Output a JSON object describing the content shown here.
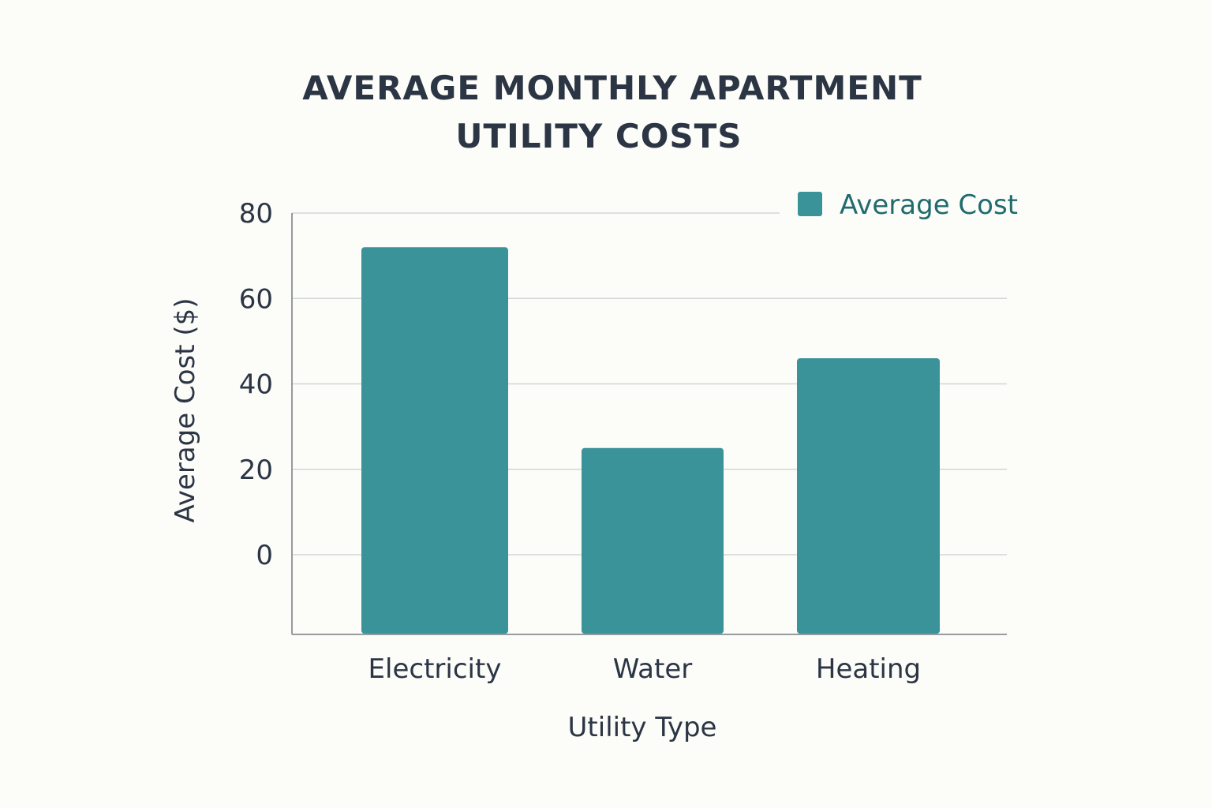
{
  "chart_data": {
    "type": "bar",
    "title_lines": [
      "AVERAGE MONTHLY APARTMENT",
      "UTILITY COSTS"
    ],
    "xlabel": "Utility Type",
    "ylabel": "Average Cost ($)",
    "categories": [
      "Electricity",
      "Water",
      "Heating"
    ],
    "series": [
      {
        "name": "Average Cost",
        "values": [
          72,
          25,
          46
        ],
        "color": "#3a9399"
      }
    ],
    "yticks": [
      0,
      20,
      40,
      60,
      80
    ],
    "tick_labels": [
      "0",
      "20",
      "40",
      "60",
      "80"
    ],
    "ylim": [
      -18.5,
      80
    ],
    "grid": true,
    "legend_position": "top-right"
  }
}
